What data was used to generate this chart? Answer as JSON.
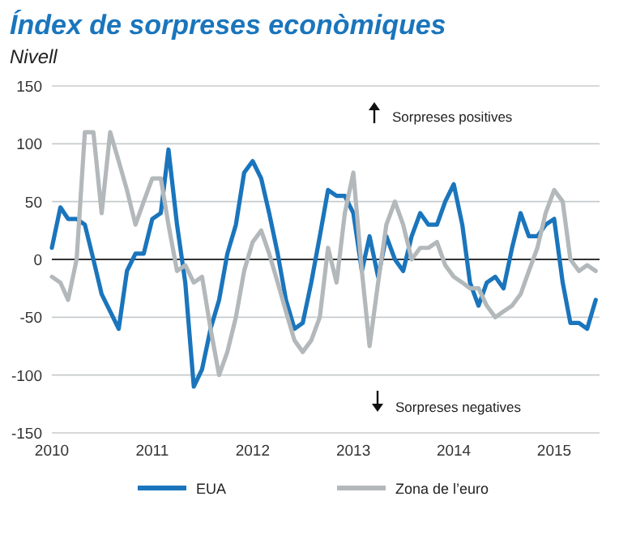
{
  "chart_data": {
    "type": "line",
    "title": "Índex de sorpreses econòmiques",
    "ylabel": "Nivell",
    "x": [
      "2010-01",
      "2010-02",
      "2010-03",
      "2010-04",
      "2010-05",
      "2010-06",
      "2010-07",
      "2010-08",
      "2010-09",
      "2010-10",
      "2010-11",
      "2010-12",
      "2011-01",
      "2011-02",
      "2011-03",
      "2011-04",
      "2011-05",
      "2011-06",
      "2011-07",
      "2011-08",
      "2011-09",
      "2011-10",
      "2011-11",
      "2011-12",
      "2012-01",
      "2012-02",
      "2012-03",
      "2012-04",
      "2012-05",
      "2012-06",
      "2012-07",
      "2012-08",
      "2012-09",
      "2012-10",
      "2012-11",
      "2012-12",
      "2013-01",
      "2013-02",
      "2013-03",
      "2013-04",
      "2013-05",
      "2013-06",
      "2013-07",
      "2013-08",
      "2013-09",
      "2013-10",
      "2013-11",
      "2013-12",
      "2014-01",
      "2014-02",
      "2014-03",
      "2014-04",
      "2014-05",
      "2014-06",
      "2014-07",
      "2014-08",
      "2014-09",
      "2014-10",
      "2014-11",
      "2014-12",
      "2015-01",
      "2015-02",
      "2015-03",
      "2015-04",
      "2015-05",
      "2015-06"
    ],
    "series": [
      {
        "name": "EUA",
        "color": "#1a75bc",
        "values": [
          10,
          45,
          35,
          35,
          30,
          0,
          -30,
          -45,
          -60,
          -10,
          5,
          5,
          35,
          40,
          95,
          30,
          -20,
          -110,
          -95,
          -60,
          -35,
          5,
          30,
          75,
          85,
          70,
          40,
          5,
          -35,
          -60,
          -55,
          -20,
          20,
          60,
          55,
          55,
          40,
          -10,
          20,
          -15,
          20,
          0,
          -10,
          20,
          40,
          30,
          30,
          50,
          65,
          30,
          -20,
          -40,
          -20,
          -15,
          -25,
          10,
          40,
          20,
          20,
          30,
          35,
          -20,
          -55,
          -55,
          -60,
          -35
        ]
      },
      {
        "name": "Zona de l’euro",
        "color": "#b3b8bb",
        "values": [
          -15,
          -20,
          -35,
          0,
          110,
          110,
          40,
          110,
          85,
          60,
          30,
          50,
          70,
          70,
          30,
          -10,
          -5,
          -20,
          -15,
          -60,
          -100,
          -80,
          -50,
          -10,
          15,
          25,
          5,
          -20,
          -45,
          -70,
          -80,
          -70,
          -50,
          10,
          -20,
          40,
          75,
          -10,
          -75,
          -20,
          30,
          50,
          30,
          0,
          10,
          10,
          15,
          -5,
          -15,
          -20,
          -25,
          -25,
          -40,
          -50,
          -45,
          -40,
          -30,
          -10,
          10,
          40,
          60,
          50,
          0,
          -10,
          -5,
          -10
        ]
      }
    ],
    "xlim": [
      "2010-01-01",
      "2015-06-15"
    ],
    "xticks": [
      {
        "value": "2010-01-01",
        "label": "2010"
      },
      {
        "value": "2011-01-01",
        "label": "2011"
      },
      {
        "value": "2012-01-01",
        "label": "2012"
      },
      {
        "value": "2013-01-01",
        "label": "2013"
      },
      {
        "value": "2014-01-01",
        "label": "2014"
      },
      {
        "value": "2015-01-01",
        "label": "2015"
      }
    ],
    "ylim": [
      -150,
      150
    ],
    "yticks": [
      -150,
      -100,
      -50,
      0,
      50,
      100,
      150
    ],
    "grid": "y",
    "legend": "bottom",
    "ref_lines": [
      {
        "axis": "y",
        "value": 0,
        "color": "#333333"
      }
    ],
    "annotations": [
      "Sorpreses positives",
      "Sorpreses negatives"
    ]
  }
}
